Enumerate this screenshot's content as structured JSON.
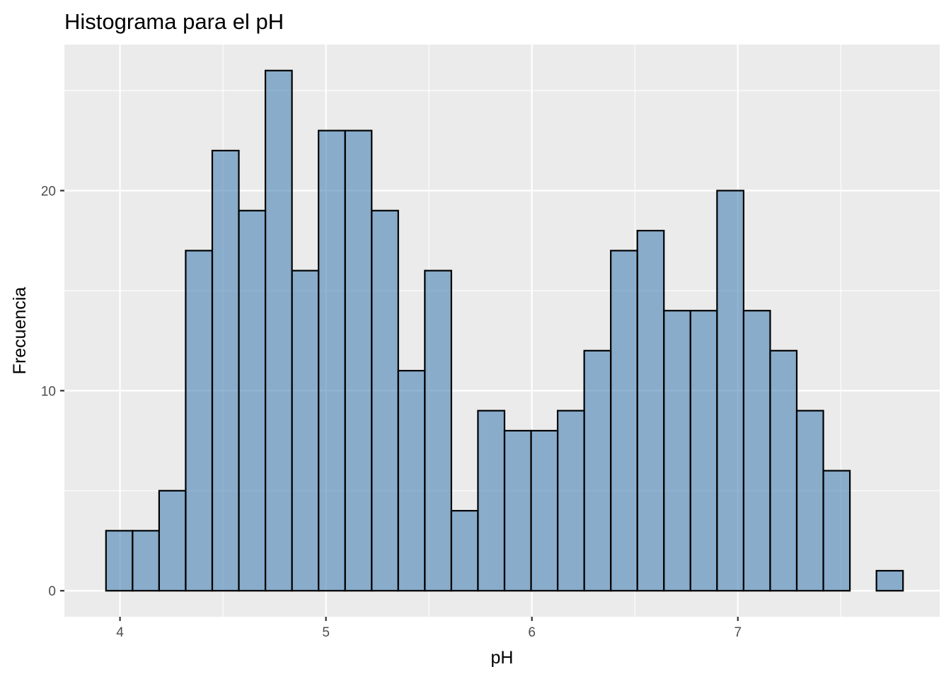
{
  "chart_data": {
    "type": "bar",
    "title": "Histograma para el pH",
    "xlabel": "pH",
    "ylabel": "Frecuencia",
    "x_ticks": [
      4,
      5,
      6,
      7
    ],
    "x_tick_labels": [
      "4",
      "5",
      "6",
      "7"
    ],
    "y_ticks": [
      0,
      10,
      20
    ],
    "y_tick_labels": [
      "0",
      "10",
      "20"
    ],
    "xlim": [
      3.73,
      7.98
    ],
    "ylim": [
      -1.3,
      27.3
    ],
    "bin_width": 0.129,
    "bin_start": 3.932,
    "values": [
      3,
      3,
      5,
      17,
      22,
      19,
      26,
      16,
      23,
      23,
      19,
      11,
      16,
      4,
      9,
      8,
      8,
      9,
      12,
      17,
      18,
      14,
      14,
      20,
      14,
      12,
      9,
      6,
      0,
      1
    ],
    "fill_color": "#4682b4",
    "outline_color": "#000000",
    "panel_color": "#ebebeb",
    "grid": true,
    "legend": "none"
  }
}
